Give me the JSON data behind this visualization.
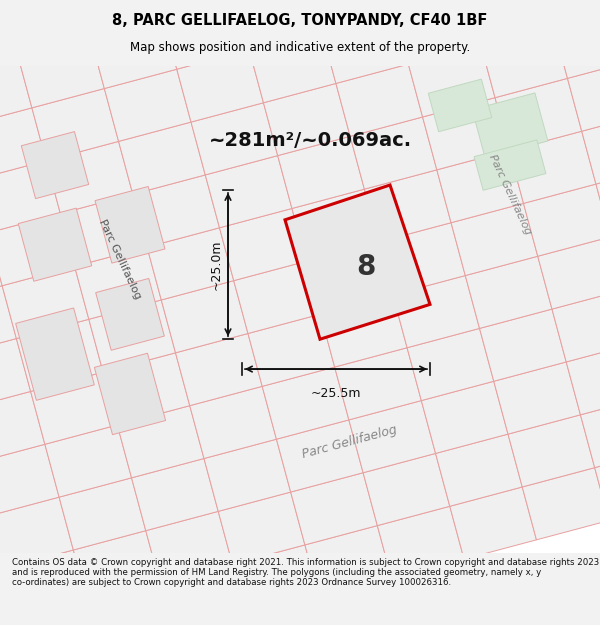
{
  "title_line1": "8, PARC GELLIFAELOG, TONYPANDY, CF40 1BF",
  "title_line2": "Map shows position and indicative extent of the property.",
  "footer_text": "Contains OS data © Crown copyright and database right 2021. This information is subject to Crown copyright and database rights 2023 and is reproduced with the permission of HM Land Registry. The polygons (including the associated geometry, namely x, y co-ordinates) are subject to Crown copyright and database rights 2023 Ordnance Survey 100026316.",
  "area_text": "~281m²/~0.069ac.",
  "plot_number": "8",
  "dim_width": "~25.5m",
  "dim_height": "~25.0m",
  "bg_color": "#f2f2f2",
  "map_bg": "#ffffff",
  "parcel_fill": "#e8e8e8",
  "parcel_edge": "#e8a8a8",
  "plot_fill": "#e0e0e0",
  "plot_border": "#cc0000",
  "road_label_color": "#888888",
  "top_right_tint": "#dce8dc",
  "label_color": "#555555"
}
